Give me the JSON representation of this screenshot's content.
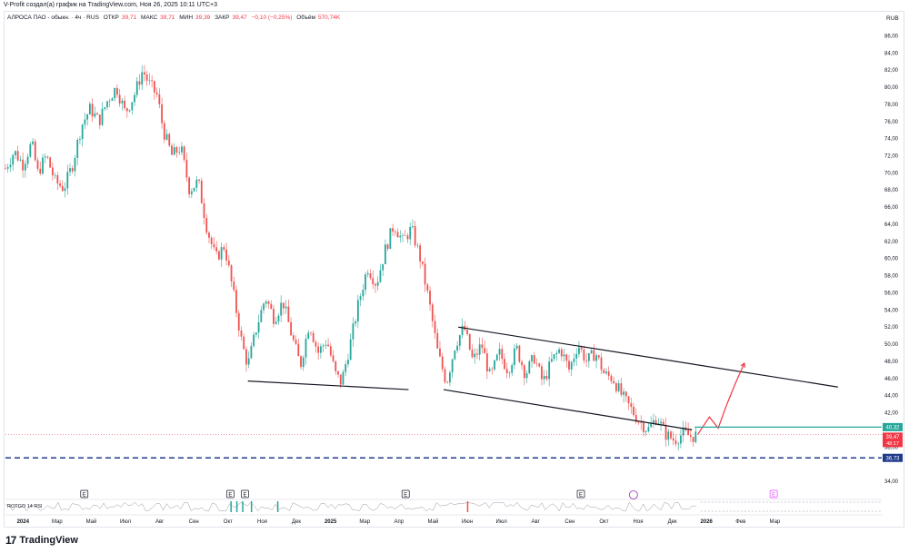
{
  "credit": "V-Profit создал(а) график на TradingView.com, Ноя 26, 2025 10:11 UTC+3",
  "legend": {
    "symbol": "АЛРОСА ПАО - обыкн. · 4ч · RUS",
    "open_label": "ОТКР",
    "open": "39,71",
    "high_label": "МАКС",
    "high": "39,71",
    "low_label": "МИН",
    "low": "39,39",
    "close_label": "ЗАКР",
    "close": "39,47",
    "change": "−0,10 (−0,25%)",
    "volume_label": "Объём",
    "volume": "570,74K"
  },
  "currency": "RUB",
  "footer": {
    "logo": "17",
    "brand": "TradingView"
  },
  "colors": {
    "up": "#26a69a",
    "down": "#ef5350",
    "trend": "#131722",
    "level": "#26a69a",
    "dashed": "#1e3a8a",
    "projection": "#f23645",
    "rsi": "#9598a1"
  },
  "chart_data": {
    "type": "candlestick",
    "x": [
      "2024",
      "Мар",
      "Май",
      "Июл",
      "Авг",
      "Сен",
      "Окт",
      "Ноя",
      "Дек",
      "2025",
      "Мар",
      "Апр",
      "Май",
      "Июн",
      "Июл",
      "Авг",
      "Сен",
      "Окт",
      "Ноя",
      "Дек",
      "2026",
      "Фев",
      "Мар"
    ],
    "y_ticks": [
      "86,00",
      "84,00",
      "82,00",
      "80,00",
      "78,00",
      "76,00",
      "74,00",
      "72,00",
      "70,00",
      "68,00",
      "66,00",
      "64,00",
      "62,00",
      "60,00",
      "58,00",
      "56,00",
      "54,00",
      "52,00",
      "50,00",
      "48,00",
      "46,00",
      "44,00",
      "42,00",
      "38,00",
      "34,00"
    ],
    "ylim": [
      34,
      87
    ],
    "price_path": [
      {
        "x": 0,
        "y": 70.5
      },
      {
        "x": 0.3,
        "y": 72.5
      },
      {
        "x": 0.6,
        "y": 71
      },
      {
        "x": 0.9,
        "y": 73.5
      },
      {
        "x": 1.1,
        "y": 70
      },
      {
        "x": 1.4,
        "y": 72
      },
      {
        "x": 1.7,
        "y": 69
      },
      {
        "x": 2.0,
        "y": 68.2
      },
      {
        "x": 2.3,
        "y": 71
      },
      {
        "x": 2.6,
        "y": 75.5
      },
      {
        "x": 2.9,
        "y": 77.5
      },
      {
        "x": 3.2,
        "y": 76
      },
      {
        "x": 3.5,
        "y": 78.5
      },
      {
        "x": 3.8,
        "y": 80
      },
      {
        "x": 4.1,
        "y": 77
      },
      {
        "x": 4.4,
        "y": 79
      },
      {
        "x": 4.7,
        "y": 82
      },
      {
        "x": 4.9,
        "y": 80.5
      },
      {
        "x": 5.2,
        "y": 79
      },
      {
        "x": 5.4,
        "y": 75
      },
      {
        "x": 5.7,
        "y": 72
      },
      {
        "x": 6.0,
        "y": 73
      },
      {
        "x": 6.3,
        "y": 68
      },
      {
        "x": 6.6,
        "y": 69
      },
      {
        "x": 6.9,
        "y": 63.5
      },
      {
        "x": 7.2,
        "y": 60
      },
      {
        "x": 7.5,
        "y": 61.5
      },
      {
        "x": 7.8,
        "y": 56
      },
      {
        "x": 8.1,
        "y": 50
      },
      {
        "x": 8.3,
        "y": 47.5
      },
      {
        "x": 8.6,
        "y": 52
      },
      {
        "x": 8.9,
        "y": 55.5
      },
      {
        "x": 9.2,
        "y": 53
      },
      {
        "x": 9.5,
        "y": 55
      },
      {
        "x": 9.8,
        "y": 51
      },
      {
        "x": 10.1,
        "y": 47.5
      },
      {
        "x": 10.4,
        "y": 52.5
      },
      {
        "x": 10.7,
        "y": 49
      },
      {
        "x": 11.0,
        "y": 50.5
      },
      {
        "x": 11.3,
        "y": 46.5
      },
      {
        "x": 11.5,
        "y": 45.5
      },
      {
        "x": 11.8,
        "y": 50
      },
      {
        "x": 12.1,
        "y": 55
      },
      {
        "x": 12.4,
        "y": 59
      },
      {
        "x": 12.7,
        "y": 57
      },
      {
        "x": 13.0,
        "y": 61
      },
      {
        "x": 13.3,
        "y": 64
      },
      {
        "x": 13.6,
        "y": 62
      },
      {
        "x": 13.9,
        "y": 63.5
      },
      {
        "x": 14.2,
        "y": 60
      },
      {
        "x": 14.5,
        "y": 55
      },
      {
        "x": 14.8,
        "y": 49
      },
      {
        "x": 15.1,
        "y": 45.5
      },
      {
        "x": 15.4,
        "y": 50
      },
      {
        "x": 15.7,
        "y": 52
      },
      {
        "x": 16.0,
        "y": 48
      },
      {
        "x": 16.3,
        "y": 50
      },
      {
        "x": 16.6,
        "y": 46
      },
      {
        "x": 16.9,
        "y": 49
      },
      {
        "x": 17.2,
        "y": 47
      },
      {
        "x": 17.5,
        "y": 49.5
      },
      {
        "x": 17.8,
        "y": 46.5
      },
      {
        "x": 18.1,
        "y": 48.5
      },
      {
        "x": 18.4,
        "y": 45.5
      },
      {
        "x": 18.7,
        "y": 48
      },
      {
        "x": 19.0,
        "y": 49.5
      },
      {
        "x": 19.3,
        "y": 47
      },
      {
        "x": 19.6,
        "y": 50
      },
      {
        "x": 19.9,
        "y": 48
      },
      {
        "x": 20.2,
        "y": 49
      },
      {
        "x": 20.5,
        "y": 46.5
      },
      {
        "x": 20.8,
        "y": 46
      },
      {
        "x": 21.1,
        "y": 44
      },
      {
        "x": 21.4,
        "y": 42.5
      },
      {
        "x": 21.7,
        "y": 41
      },
      {
        "x": 22.0,
        "y": 40
      },
      {
        "x": 22.3,
        "y": 41.5
      },
      {
        "x": 22.6,
        "y": 39.5
      },
      {
        "x": 22.9,
        "y": 38.8
      },
      {
        "x": 23.2,
        "y": 39.6
      },
      {
        "x": 23.5,
        "y": 39.2
      },
      {
        "x": 23.7,
        "y": 39.47
      }
    ],
    "projection": [
      {
        "x": 23.7,
        "y": 39.47
      },
      {
        "x": 24.1,
        "y": 41.5
      },
      {
        "x": 24.4,
        "y": 40.2
      },
      {
        "x": 24.7,
        "y": 43
      },
      {
        "x": 25.0,
        "y": 45.5
      },
      {
        "x": 25.3,
        "y": 47.8
      }
    ],
    "trendlines": [
      {
        "from": {
          "x": 8.3,
          "y": 45.7
        },
        "to": {
          "x": 13.8,
          "y": 44.7
        }
      },
      {
        "from": {
          "x": 15.0,
          "y": 44.7
        },
        "to": {
          "x": 23.5,
          "y": 40.0
        }
      },
      {
        "from": {
          "x": 15.5,
          "y": 52.0
        },
        "to": {
          "x": 28.5,
          "y": 45.0
        }
      }
    ],
    "levels": [
      {
        "price": 40.32,
        "label": "40,32",
        "style": "solid",
        "color": "#26a69a"
      },
      {
        "price": 36.73,
        "label": "36,73",
        "style": "dashed",
        "color": "#1e3a8a"
      }
    ],
    "last_price": {
      "label": "39,47",
      "countdown": "48:17"
    },
    "events": [
      {
        "x": 2.7,
        "label": "E"
      },
      {
        "x": 7.7,
        "label": "E"
      },
      {
        "x": 8.2,
        "label": "E"
      },
      {
        "x": 13.7,
        "label": "E"
      },
      {
        "x": 19.7,
        "label": "E"
      },
      {
        "x": 26.3,
        "label": "E"
      }
    ],
    "indicator_label": "ROTGO 14 RSI"
  }
}
